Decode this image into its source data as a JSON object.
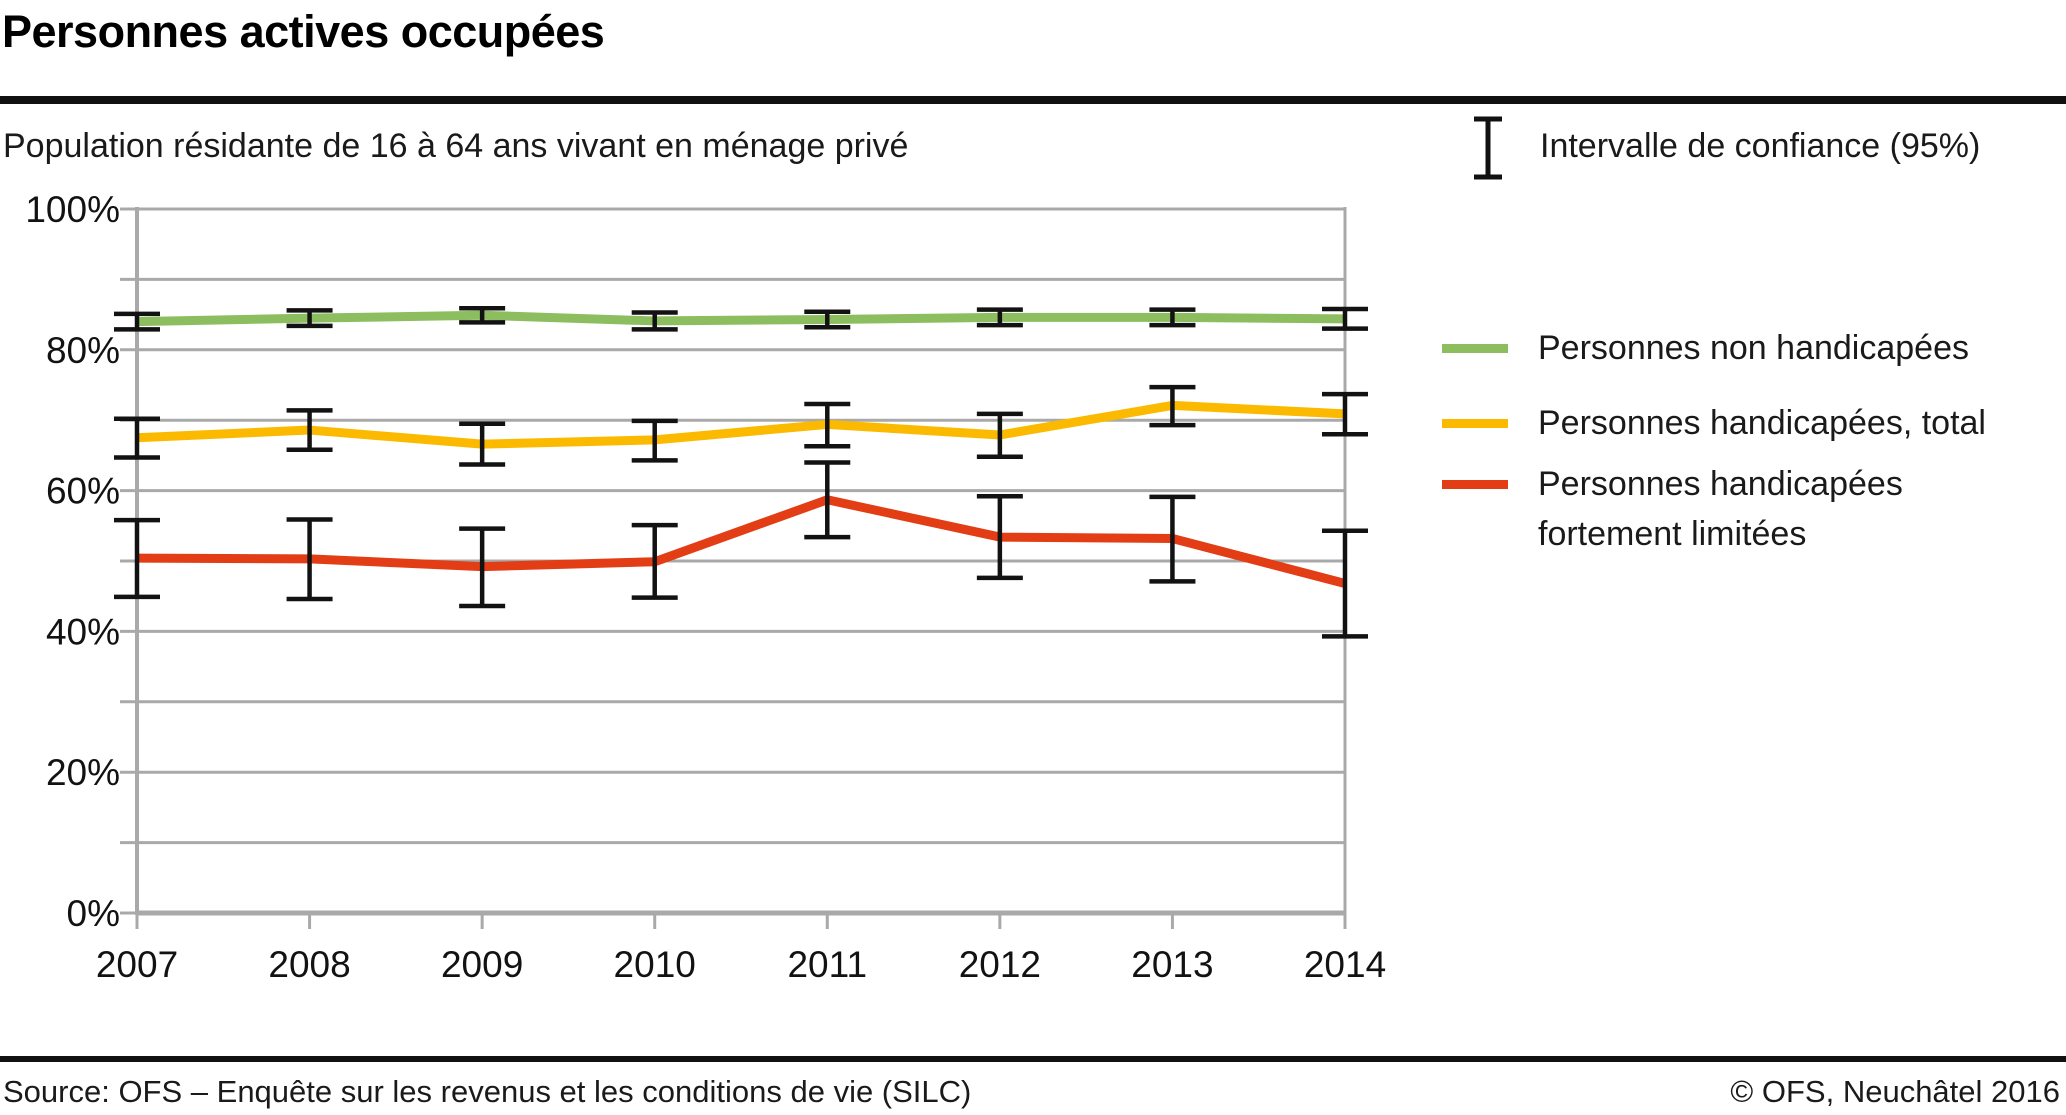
{
  "header": {
    "title": "Personnes actives occupées"
  },
  "subtitle": "Population résidante de 16 à 64 ans vivant en ménage privé",
  "ci_legend": {
    "label": "Intervalle de confiance (95%)"
  },
  "legend": [
    {
      "label": "Personnes non handicapées",
      "label2": "",
      "color": "#8cbe5f"
    },
    {
      "label": "Personnes handicapées, total",
      "label2": "",
      "color": "#fbba00"
    },
    {
      "label": "Personnes handicapées",
      "label2": "fortement limitées",
      "color": "#e23d15"
    }
  ],
  "footer": {
    "source": "Source: OFS – Enquête sur les revenus et les conditions de vie (SILC)",
    "copyright": "© OFS, Neuchâtel 2016"
  },
  "chart_data": {
    "type": "line",
    "title": "Personnes actives occupées",
    "subtitle": "Population résidante de 16 à 64 ans vivant en ménage privé",
    "x": [
      2007,
      2008,
      2009,
      2010,
      2011,
      2012,
      2013,
      2014
    ],
    "xlabel": "",
    "ylabel": "",
    "y_axis": {
      "ticks": [
        0,
        20,
        40,
        60,
        80,
        100
      ],
      "tick_suffix": "%",
      "gridline_step": 10,
      "range": [
        0,
        100
      ]
    },
    "error_bars_meaning": "Intervalle de confiance (95%)",
    "series": [
      {
        "name": "Personnes non handicapées",
        "color": "#8cbe5f",
        "values": [
          84.0,
          84.5,
          84.9,
          84.1,
          84.3,
          84.6,
          84.6,
          84.4
        ],
        "ci_low": [
          82.9,
          83.4,
          83.9,
          82.9,
          83.2,
          83.5,
          83.5,
          83.0
        ],
        "ci_high": [
          85.1,
          85.6,
          85.9,
          85.3,
          85.4,
          85.7,
          85.7,
          85.8
        ]
      },
      {
        "name": "Personnes handicapées, total",
        "color": "#fbba00",
        "values": [
          67.5,
          68.6,
          66.6,
          67.2,
          69.4,
          67.9,
          72.1,
          70.9
        ],
        "ci_low": [
          64.7,
          65.8,
          63.7,
          64.3,
          66.3,
          64.8,
          69.3,
          68.0
        ],
        "ci_high": [
          70.2,
          71.4,
          69.5,
          69.9,
          72.3,
          70.9,
          74.7,
          73.7
        ]
      },
      {
        "name": "Personnes handicapées fortement limitées",
        "color": "#e23d15",
        "values": [
          50.4,
          50.3,
          49.2,
          49.9,
          58.7,
          53.4,
          53.2,
          46.8
        ],
        "ci_low": [
          44.9,
          44.6,
          43.6,
          44.8,
          53.4,
          47.6,
          47.1,
          39.3
        ],
        "ci_high": [
          55.8,
          55.9,
          54.6,
          55.1,
          64.0,
          59.2,
          59.1,
          54.3
        ]
      }
    ],
    "legend_position": "right",
    "grid": true
  }
}
